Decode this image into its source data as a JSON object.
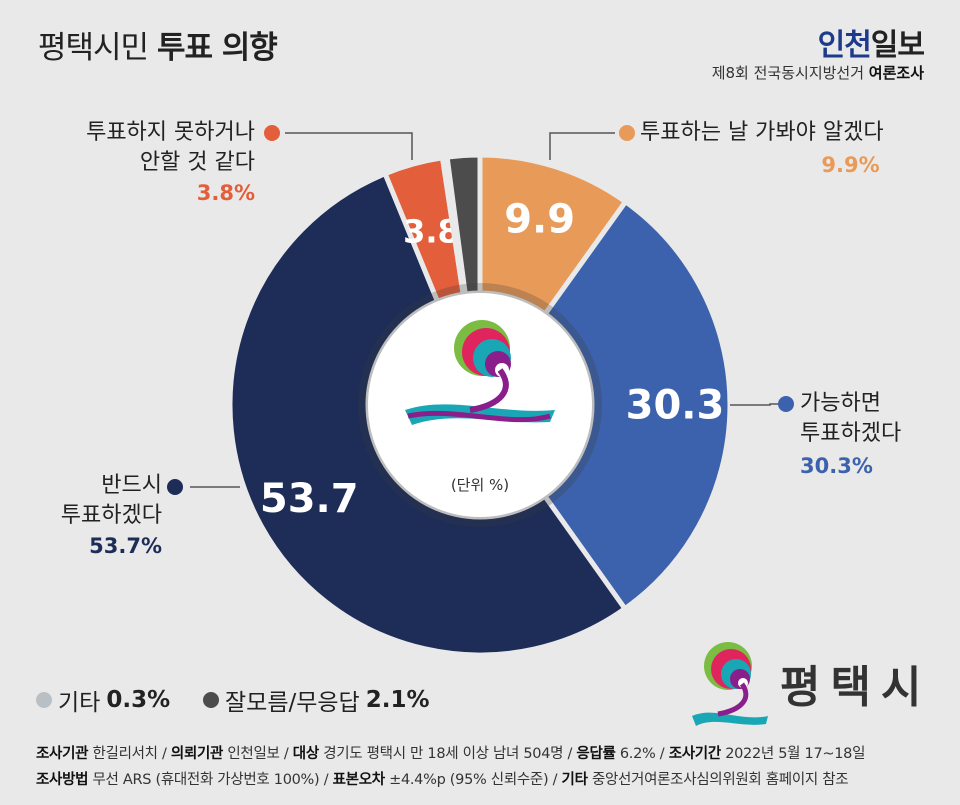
{
  "header": {
    "title_plain": "평택시민",
    "title_bold": "투표 의향",
    "brand_a": "인천",
    "brand_b": "일보",
    "survey_plain": "제8회 전국동시지방선거",
    "survey_bold": "여론조사"
  },
  "chart_data": {
    "type": "pie",
    "unit_label": "(단위 %)",
    "start_angle_deg": 0,
    "slices": [
      {
        "label": "투표하는 날 가봐야 알겠다",
        "value": 9.9,
        "display": "9.9",
        "pct_label": "9.9%",
        "color": "#e89a58"
      },
      {
        "label": "가능하면 투표하겠다",
        "value": 30.3,
        "display": "30.3",
        "pct_label": "30.3%",
        "color": "#3d62ad"
      },
      {
        "label": "반드시 투표하겠다",
        "value": 53.7,
        "display": "53.7",
        "pct_label": "53.7%",
        "color": "#1d2d58"
      },
      {
        "label": "투표하지 못하거나 안할 것 같다",
        "value": 3.8,
        "display": "3.8",
        "pct_label": "3.8%",
        "color": "#e35e3a"
      },
      {
        "label": "기타",
        "value": 0.3,
        "display": "",
        "pct_label": "0.3%",
        "color": "#b9c0c5"
      },
      {
        "label": "잘모름/무응답",
        "value": 2.1,
        "display": "",
        "pct_label": "2.1%",
        "color": "#4c4c4c"
      }
    ]
  },
  "labels": {
    "later_line1": "투표하는 날 가봐야 알겠다",
    "later_pct": "9.9%",
    "likely_line1": "가능하면",
    "likely_line2": "투표하겠다",
    "likely_pct": "30.3%",
    "must_line1": "반드시",
    "must_line2": "투표하겠다",
    "must_pct": "53.7%",
    "not_line1": "투표하지 못하거나",
    "not_line2": "안할 것 같다",
    "not_pct": "3.8%"
  },
  "legend": {
    "etc_label": "기타",
    "etc_value": "0.3%",
    "dunno_label": "잘모름/무응답",
    "dunno_value": "2.1%"
  },
  "logo": {
    "text": "평택시"
  },
  "footer": {
    "k1": "조사기관",
    "v1": "한길리서치",
    "k2": "의뢰기관",
    "v2": "인천일보",
    "k3": "대상",
    "v3": "경기도 평택시 만 18세 이상 남녀 504명",
    "k4": "응답률",
    "v4": "6.2%",
    "k5": "조사기간",
    "v5": "2022년 5월 17~18일",
    "k6": "조사방법",
    "v6": "무선 ARS (휴대전화 가상번호 100%)",
    "k7": "표본오차",
    "v7": "±4.4%p (95% 신뢰수준)",
    "k8": "기타",
    "v8": "중앙선거여론조사심의위원회 홈페이지 참조"
  },
  "colors": {
    "background": "#e9e9e9",
    "brand_blue": "#1e3a8a"
  }
}
